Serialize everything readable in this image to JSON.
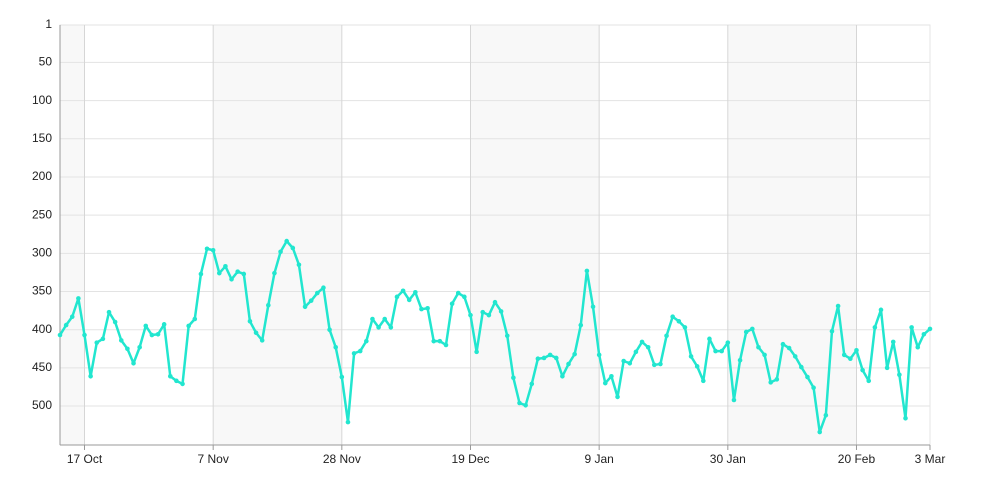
{
  "chart_data": {
    "type": "line",
    "categories": [
      null,
      null,
      null,
      null,
      "17 Oct",
      null,
      null,
      null,
      null,
      null,
      null,
      null,
      null,
      null,
      null,
      null,
      null,
      null,
      null,
      null,
      null,
      null,
      null,
      null,
      null,
      "7 Nov",
      null,
      null,
      null,
      null,
      null,
      null,
      null,
      null,
      null,
      null,
      null,
      null,
      null,
      null,
      null,
      null,
      null,
      null,
      null,
      null,
      "28 Nov",
      null,
      null,
      null,
      null,
      null,
      null,
      null,
      null,
      null,
      null,
      null,
      null,
      null,
      null,
      null,
      null,
      null,
      null,
      null,
      null,
      "19 Dec",
      null,
      null,
      null,
      null,
      null,
      null,
      null,
      null,
      null,
      null,
      null,
      null,
      null,
      null,
      null,
      null,
      null,
      null,
      null,
      null,
      "9 Jan",
      null,
      null,
      null,
      null,
      null,
      null,
      null,
      null,
      null,
      null,
      null,
      null,
      null,
      null,
      null,
      null,
      null,
      null,
      null,
      null,
      "30 Jan",
      null,
      null,
      null,
      null,
      null,
      null,
      null,
      null,
      null,
      null,
      null,
      null,
      null,
      null,
      null,
      null,
      null,
      null,
      null,
      null,
      "20 Feb",
      null,
      null,
      null,
      null,
      null,
      null,
      null,
      null,
      null,
      null,
      null,
      "3 Mar"
    ],
    "values": [
      407,
      394,
      383,
      359,
      407,
      461,
      417,
      412,
      377,
      390,
      414,
      425,
      444,
      423,
      395,
      407,
      406,
      393,
      461,
      467,
      471,
      395,
      386,
      327,
      294,
      296,
      326,
      317,
      334,
      324,
      327,
      389,
      404,
      414,
      368,
      326,
      298,
      284,
      293,
      315,
      370,
      362,
      352,
      345,
      400,
      423,
      462,
      521,
      431,
      428,
      415,
      386,
      397,
      386,
      397,
      357,
      349,
      361,
      351,
      373,
      372,
      415,
      415,
      420,
      366,
      352,
      357,
      381,
      429,
      377,
      381,
      364,
      376,
      408,
      463,
      496,
      499,
      471,
      438,
      437,
      433,
      437,
      461,
      445,
      432,
      394,
      323,
      370,
      433,
      470,
      461,
      488,
      441,
      444,
      429,
      416,
      423,
      446,
      445,
      408,
      383,
      389,
      397,
      435,
      448,
      467,
      412,
      428,
      428,
      417,
      492,
      440,
      403,
      399,
      423,
      433,
      469,
      465,
      419,
      424,
      435,
      449,
      462,
      476,
      534,
      512,
      402,
      369,
      433,
      438,
      427,
      453,
      467,
      397,
      374,
      450,
      416,
      459,
      516,
      397,
      423,
      406,
      399
    ],
    "color": "#22e6cf",
    "ylim": [
      551,
      1
    ],
    "yticks": [
      1,
      50,
      100,
      150,
      200,
      250,
      300,
      350,
      400,
      450,
      500
    ],
    "grid": true
  }
}
